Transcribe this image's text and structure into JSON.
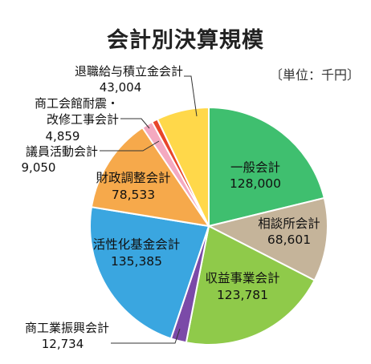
{
  "title": "会計別決算規模",
  "unit": "〔単位：千円〕",
  "chart_data": {
    "type": "pie",
    "title": "会計別決算規模",
    "unit": "千円",
    "start_angle_deg": 0,
    "direction": "clockwise",
    "slices": [
      {
        "name": "一般会計",
        "value": 128000,
        "value_label": "128,000",
        "color": "#3fbf6f"
      },
      {
        "name": "相談所会計",
        "value": 68601,
        "value_label": "68,601",
        "color": "#c5b49a"
      },
      {
        "name": "収益事業会計",
        "value": 123781,
        "value_label": "123,781",
        "color": "#8fca4a"
      },
      {
        "name": "商工業振興会計",
        "value": 12734,
        "value_label": "12,734",
        "color": "#7b4aa8"
      },
      {
        "name": "活性化基金会計",
        "value": 135385,
        "value_label": "135,385",
        "color": "#3aa6e0"
      },
      {
        "name": "財政調整会計",
        "value": 78533,
        "value_label": "78,533",
        "color": "#f6a94b"
      },
      {
        "name": "議員活動会計",
        "value": 9050,
        "value_label": "9,050",
        "color": "#f4a9c0"
      },
      {
        "name": "商工会館耐震・改修工事会計",
        "value": 4859,
        "value_label": "4,859",
        "color": "#e8452a"
      },
      {
        "name": "退職給与積立金会計",
        "value": 43004,
        "value_label": "43,004",
        "color": "#ffd84a"
      }
    ]
  },
  "labels": {
    "ippan": {
      "l1": "一般会計",
      "l2": "128,000"
    },
    "soudan": {
      "l1": "相談所会計",
      "l2": "68,601"
    },
    "shueki": {
      "l1": "収益事業会計",
      "l2": "123,781"
    },
    "shinko": {
      "l1": "商工業振興会計",
      "l2": "12,734"
    },
    "kassei": {
      "l1": "活性化基金会計",
      "l2": "135,385"
    },
    "zaisei": {
      "l1": "財政調整会計",
      "l2": "78,533"
    },
    "giin": {
      "l1": "議員活動会計",
      "l2": "9,050"
    },
    "kaikan": {
      "l1": "商工会館耐震・",
      "l2": "改修工事会計",
      "l3": "4,859"
    },
    "taishoku": {
      "l1": "退職給与積立金会計",
      "l2": "43,004"
    }
  }
}
